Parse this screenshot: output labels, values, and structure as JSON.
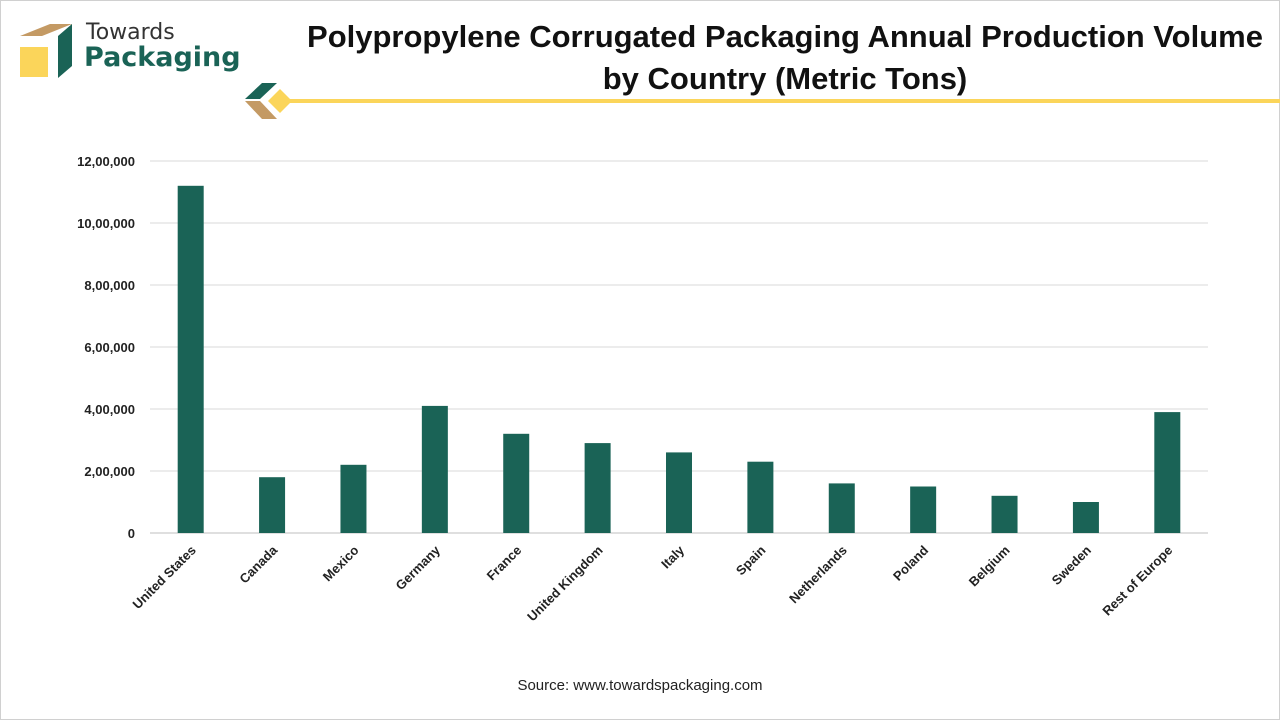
{
  "brand": {
    "line1": "Towards",
    "line2": "Packaging",
    "colors": {
      "green": "#1a6356",
      "tan": "#c49a64",
      "yellow": "#fbd55a"
    }
  },
  "chart_data": {
    "type": "bar",
    "title": "Polypropylene Corrugated Packaging Annual Production Volume by Country (Metric Tons)",
    "xlabel": "",
    "ylabel": "",
    "categories": [
      "United States",
      "Canada",
      "Mexico",
      "Germany",
      "France",
      "United Kingdom",
      "Italy",
      "Spain",
      "Netherlands",
      "Poland",
      "Belgium",
      "Sweden",
      "Rest of Europe"
    ],
    "values": [
      1120000,
      180000,
      220000,
      410000,
      320000,
      290000,
      260000,
      230000,
      160000,
      150000,
      120000,
      100000,
      390000
    ],
    "ylim": [
      0,
      1200000
    ],
    "yticks": [
      0,
      200000,
      400000,
      600000,
      800000,
      1000000,
      1200000
    ],
    "ytick_labels": [
      "0",
      "2,00,000",
      "4,00,000",
      "6,00,000",
      "8,00,000",
      "10,00,000",
      "12,00,000"
    ],
    "grid": true,
    "bar_color": "#1a6356"
  },
  "source": "Source: www.towardspackaging.com"
}
